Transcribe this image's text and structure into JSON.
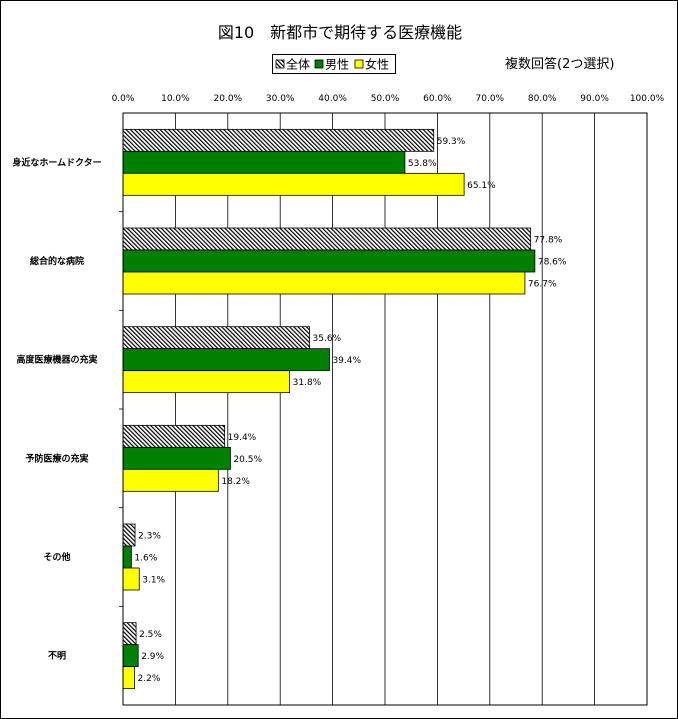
{
  "chart_data": {
    "type": "bar",
    "orientation": "horizontal",
    "title": "図10　新都市で期待する医療機能",
    "note": "複数回答(2つ選択)",
    "categories": [
      "身近なホームドクター",
      "総合的な病院",
      "高度医療機器の充実",
      "予防医療の充実",
      "その他",
      "不明"
    ],
    "series": [
      {
        "name": "全体",
        "pattern": "diagonal-hatch",
        "color": "#000000",
        "values": [
          59.3,
          77.8,
          35.6,
          19.4,
          2.3,
          2.5
        ]
      },
      {
        "name": "男性",
        "color": "#008000",
        "values": [
          53.8,
          78.6,
          39.4,
          20.5,
          1.6,
          2.9
        ]
      },
      {
        "name": "女性",
        "color": "#FFFF00",
        "values": [
          65.1,
          76.7,
          31.8,
          18.2,
          3.1,
          2.2
        ]
      }
    ],
    "unit": "%",
    "xlim": [
      0,
      100
    ],
    "xticks": [
      0,
      10,
      20,
      30,
      40,
      50,
      60,
      70,
      80,
      90,
      100
    ],
    "xtick_labels": [
      "0.0%",
      "10.0%",
      "20.0%",
      "30.0%",
      "40.0%",
      "50.0%",
      "60.0%",
      "70.0%",
      "80.0%",
      "90.0%",
      "100.0%"
    ],
    "xaxis_position": "top",
    "grid": true,
    "legend": "top-center"
  }
}
